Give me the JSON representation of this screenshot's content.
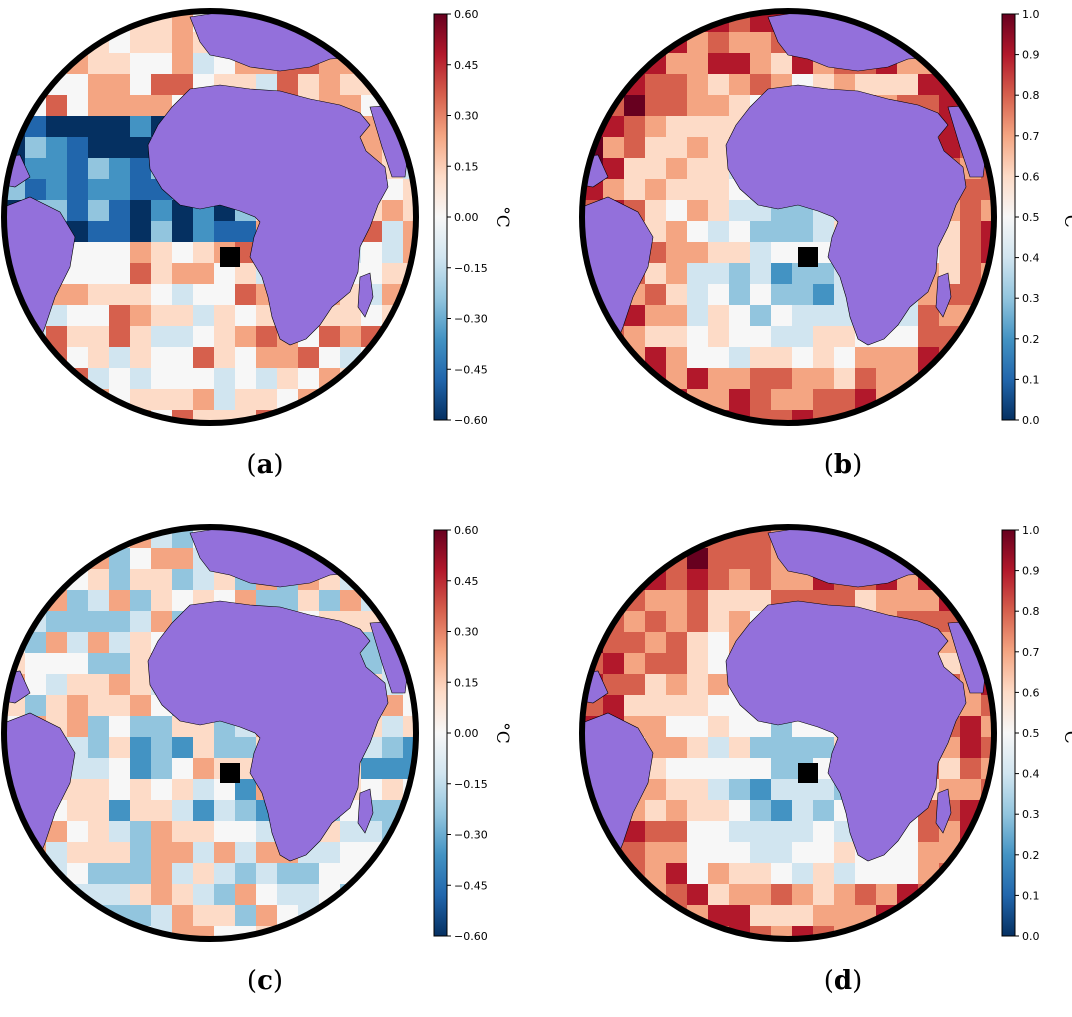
{
  "figure": {
    "panels": [
      {
        "id": "a",
        "caption_open": "(",
        "caption_letter": "a",
        "caption_close": ")",
        "colorbar": {
          "unit": "°C",
          "min": -0.6,
          "max": 0.6,
          "ticks": [
            "0.60",
            "0.45",
            "0.30",
            "0.15",
            "0.00",
            "−0.15",
            "−0.30",
            "−0.45",
            "−0.60"
          ]
        }
      },
      {
        "id": "b",
        "caption_open": "(",
        "caption_letter": "b",
        "caption_close": ")",
        "colorbar": {
          "unit": "°C",
          "min": 0.0,
          "max": 1.0,
          "ticks": [
            "1.0",
            "0.9",
            "0.8",
            "0.7",
            "0.6",
            "0.5",
            "0.4",
            "0.3",
            "0.2",
            "0.1",
            "0.0"
          ]
        }
      },
      {
        "id": "c",
        "caption_open": "(",
        "caption_letter": "c",
        "caption_close": ")",
        "colorbar": {
          "unit": "°C",
          "min": -0.6,
          "max": 0.6,
          "ticks": [
            "0.60",
            "0.45",
            "0.30",
            "0.15",
            "0.00",
            "−0.15",
            "−0.30",
            "−0.45",
            "−0.60"
          ]
        }
      },
      {
        "id": "d",
        "caption_open": "(",
        "caption_letter": "d",
        "caption_close": ")",
        "colorbar": {
          "unit": "°C",
          "min": 0.0,
          "max": 1.0,
          "ticks": [
            "1.0",
            "0.9",
            "0.8",
            "0.7",
            "0.6",
            "0.5",
            "0.4",
            "0.3",
            "0.2",
            "0.1",
            "0.0"
          ]
        }
      }
    ],
    "colors": {
      "land": "#9370db",
      "ocean_rim": "#000000",
      "colormap": [
        "#053061",
        "#2166ac",
        "#4393c3",
        "#92c5de",
        "#d1e5f0",
        "#f7f7f7",
        "#fddbc7",
        "#f4a582",
        "#d6604d",
        "#b2182b",
        "#67001f"
      ]
    }
  }
}
